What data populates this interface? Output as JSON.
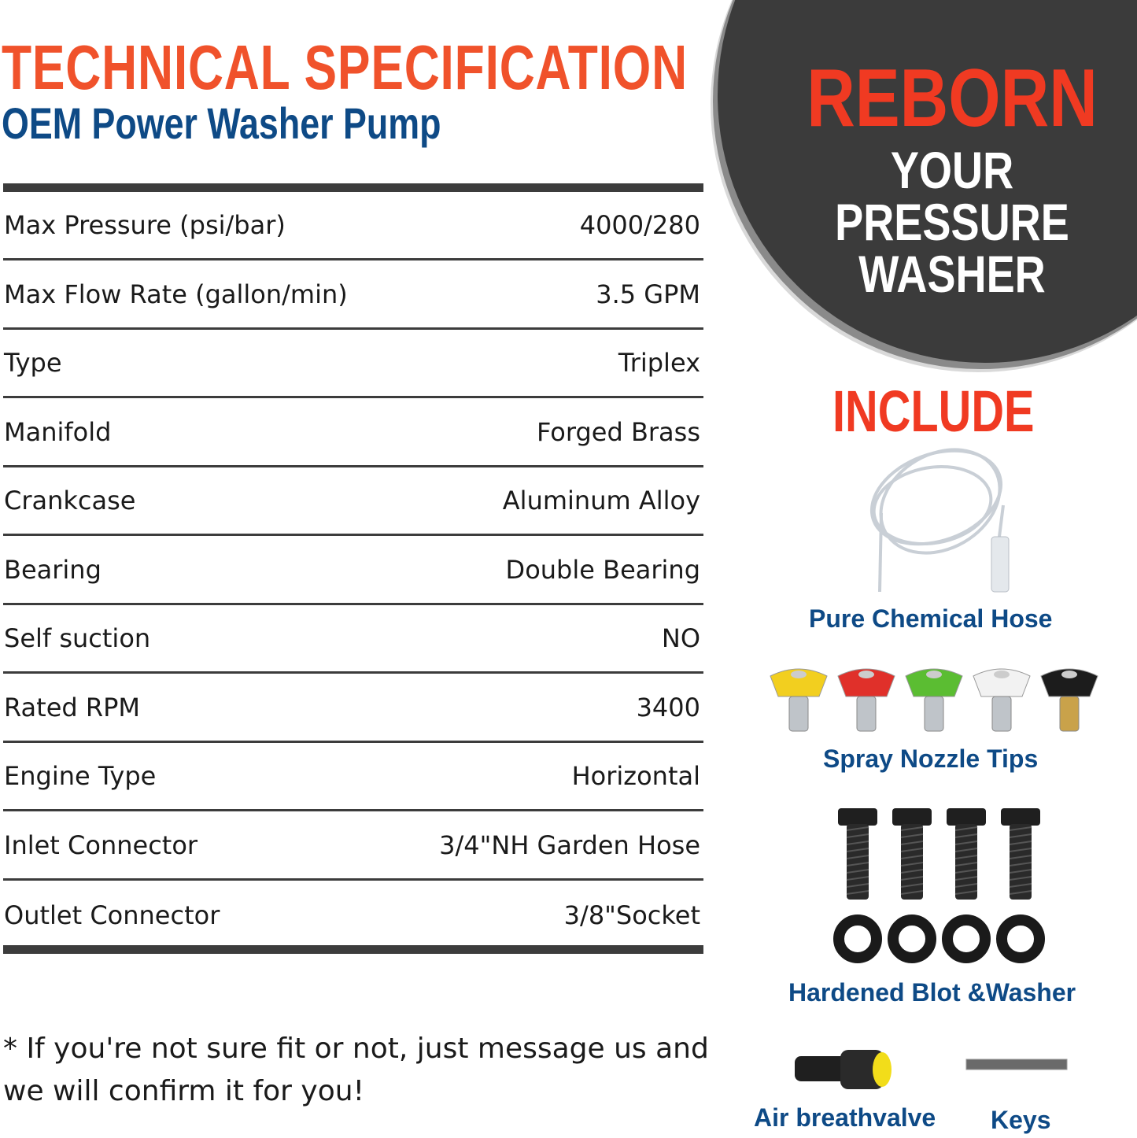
{
  "header": {
    "title": "TECHNICAL SPECIFICATION",
    "subtitle": "OEM Power Washer Pump"
  },
  "specs": [
    {
      "label": "Max Pressure (psi/bar)",
      "value": "4000/280"
    },
    {
      "label": "Max Flow Rate (gallon/min)",
      "value": "3.5 GPM"
    },
    {
      "label": "Type",
      "value": "Triplex"
    },
    {
      "label": "Manifold",
      "value": "Forged Brass"
    },
    {
      "label": "Crankcase",
      "value": "Aluminum Alloy"
    },
    {
      "label": "Bearing",
      "value": "Double Bearing"
    },
    {
      "label": "Self suction",
      "value": "NO"
    },
    {
      "label": "Rated RPM",
      "value": "3400"
    },
    {
      "label": "Engine Type",
      "value": "Horizontal"
    },
    {
      "label": "Inlet Connector",
      "value": "3/4\"NH Garden Hose"
    },
    {
      "label": "Outlet Connector",
      "value": "3/8\"Socket"
    }
  ],
  "note": "*  If you're not sure fit or not, just message us and we will confirm it for you!",
  "badge": {
    "line1": "REBORN",
    "line2": "YOUR",
    "line3": "PRESSURE",
    "line4": "WASHER"
  },
  "include": {
    "title": "INCLUDE",
    "items": [
      {
        "label": "Pure Chemical Hose",
        "icon": "hose-icon"
      },
      {
        "label": "Spray Nozzle Tips",
        "icon": "nozzle-icon"
      },
      {
        "label": "Hardened Blot &Washer",
        "icon": "bolt-icon"
      },
      {
        "label": "Air breathvalve",
        "icon": "valve-icon"
      },
      {
        "label": "Keys",
        "icon": "key-icon"
      }
    ]
  },
  "colors": {
    "accent_red": "#f03a22",
    "title_orange": "#f0522b",
    "navy": "#0e4a86",
    "dark": "#3b3b3b"
  },
  "nozzle_colors": [
    "#f2cf1f",
    "#e0302a",
    "#5bbd32",
    "#f2f2f2",
    "#1c1c1c"
  ]
}
